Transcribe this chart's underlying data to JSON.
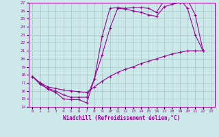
{
  "xlabel": "Windchill (Refroidissement éolien,°C)",
  "xlim": [
    -0.5,
    23.5
  ],
  "ylim": [
    14,
    27
  ],
  "xticks": [
    0,
    1,
    2,
    3,
    4,
    5,
    6,
    7,
    8,
    9,
    10,
    11,
    12,
    13,
    14,
    15,
    16,
    17,
    18,
    19,
    20,
    21,
    22,
    23
  ],
  "yticks": [
    14,
    15,
    16,
    17,
    18,
    19,
    20,
    21,
    22,
    23,
    24,
    25,
    26,
    27
  ],
  "background_color": "#cce8e8",
  "grid_color": "#aacccc",
  "line_color": "#990099",
  "curve1_x": [
    0,
    1,
    2,
    3,
    4,
    5,
    6,
    7,
    8,
    9,
    10,
    11,
    12,
    13,
    14,
    15,
    16,
    17,
    18,
    19,
    20,
    21,
    22
  ],
  "curve1_y": [
    17.8,
    17.0,
    16.2,
    15.8,
    15.0,
    14.9,
    14.9,
    14.5,
    17.5,
    22.8,
    26.3,
    26.4,
    26.3,
    26.4,
    26.4,
    26.3,
    25.8,
    27.3,
    27.4,
    27.5,
    26.3,
    23.0,
    21.0
  ],
  "curve2_x": [
    0,
    1,
    2,
    3,
    4,
    5,
    6,
    7,
    8,
    9,
    10,
    11,
    12,
    13,
    14,
    15,
    16,
    17,
    18,
    19,
    20,
    21,
    22
  ],
  "curve2_y": [
    17.8,
    16.8,
    16.3,
    16.0,
    15.5,
    15.2,
    15.2,
    15.2,
    17.5,
    20.5,
    23.8,
    26.3,
    26.2,
    26.0,
    25.8,
    25.5,
    25.3,
    26.5,
    26.8,
    27.0,
    27.4,
    25.5,
    21.0
  ],
  "curve3_x": [
    0,
    1,
    2,
    3,
    4,
    5,
    6,
    7,
    8,
    9,
    10,
    11,
    12,
    13,
    14,
    15,
    16,
    17,
    18,
    19,
    20,
    21,
    22
  ],
  "curve3_y": [
    17.8,
    17.0,
    16.5,
    16.3,
    16.1,
    16.0,
    15.9,
    15.8,
    16.5,
    17.2,
    17.8,
    18.3,
    18.7,
    19.0,
    19.4,
    19.7,
    20.0,
    20.3,
    20.6,
    20.8,
    21.0,
    21.0,
    21.0
  ]
}
